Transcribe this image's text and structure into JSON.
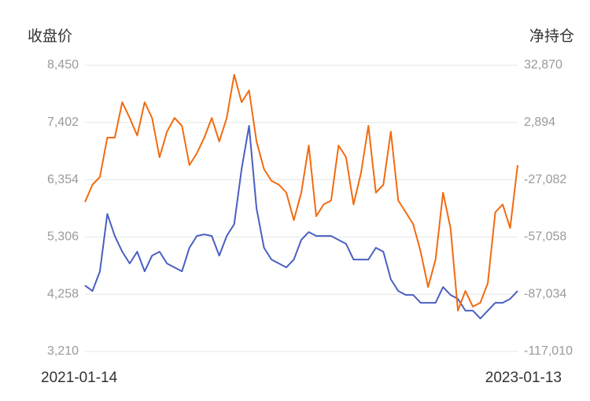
{
  "chart_data": {
    "type": "line",
    "y_label": "收盘价",
    "y2_label": "净持仓",
    "categories": [
      "2021-01-14",
      null,
      null,
      null,
      null,
      null,
      null,
      null,
      null,
      null,
      null,
      null,
      null,
      null,
      null,
      null,
      null,
      null,
      null,
      null,
      null,
      null,
      null,
      null,
      null,
      null,
      null,
      null,
      null,
      null,
      null,
      null,
      null,
      null,
      null,
      null,
      null,
      null,
      null,
      null,
      null,
      null,
      null,
      null,
      null,
      null,
      null,
      null,
      null,
      null,
      null,
      null,
      null,
      null,
      null,
      null,
      null,
      null,
      "2023-01-13"
    ],
    "series": [
      {
        "color": "#4a5fc1",
        "values": [
          4418,
          4317,
          4677,
          5728,
          5325,
          5037,
          4821,
          5037,
          4677,
          4965,
          5037,
          4821,
          4749,
          4677,
          5109,
          5325,
          5354,
          5325,
          4965,
          5325,
          5541,
          6549,
          7341,
          5829,
          5109,
          4893,
          4821,
          4749,
          4893,
          5253,
          5397,
          5325,
          5325,
          5325,
          5253,
          5181,
          4893,
          4893,
          4893,
          5109,
          5037,
          4533,
          4317,
          4245,
          4245,
          4101,
          4101,
          4101,
          4389,
          4245,
          4173,
          3957,
          3957,
          3813,
          3957,
          4101,
          4101,
          4173,
          4317
        ]
      },
      {
        "color": "#f26a0f",
        "axis": "y2",
        "values": [
          -38776,
          -29717,
          -25600,
          -5012,
          -5012,
          13517,
          5282,
          -3953,
          13517,
          5282,
          -15306,
          -1894,
          5282,
          1165,
          -19423,
          -13247,
          -5012,
          5282,
          -7071,
          5282,
          27929,
          13517,
          19694,
          -7071,
          -21482,
          -27659,
          -29717,
          -33835,
          -48247,
          -33835,
          -9130,
          -46188,
          -40012,
          -37953,
          -9130,
          -15306,
          -40012,
          -23541,
          1165,
          -33835,
          -29717,
          -1894,
          -37953,
          -44129,
          -50306,
          -64718,
          -83247,
          -68835,
          -33835,
          -52364,
          -95600,
          -85306,
          -93541,
          -91482,
          -81188,
          -44129,
          -40012,
          -52364,
          -19423
        ]
      }
    ],
    "ylim": [
      3210,
      8450
    ],
    "yticks": [
      {
        "value": 3210,
        "label": "3,210"
      },
      {
        "value": 4258,
        "label": "4,258"
      },
      {
        "value": 5306,
        "label": "5,306"
      },
      {
        "value": 6354,
        "label": "6,354"
      },
      {
        "value": 7402,
        "label": "7,402"
      },
      {
        "value": 8450,
        "label": "8,450"
      }
    ],
    "y2lim": [
      -117010,
      32870
    ],
    "y2ticks": [
      {
        "value": -117010,
        "label": "-117,010"
      },
      {
        "value": -87034,
        "label": "-87,034"
      },
      {
        "value": -57058,
        "label": "-57,058"
      },
      {
        "value": -27082,
        "label": "-27,082"
      },
      {
        "value": 2894,
        "label": "2,894"
      },
      {
        "value": 32870,
        "label": "32,870"
      }
    ],
    "grid": true
  }
}
